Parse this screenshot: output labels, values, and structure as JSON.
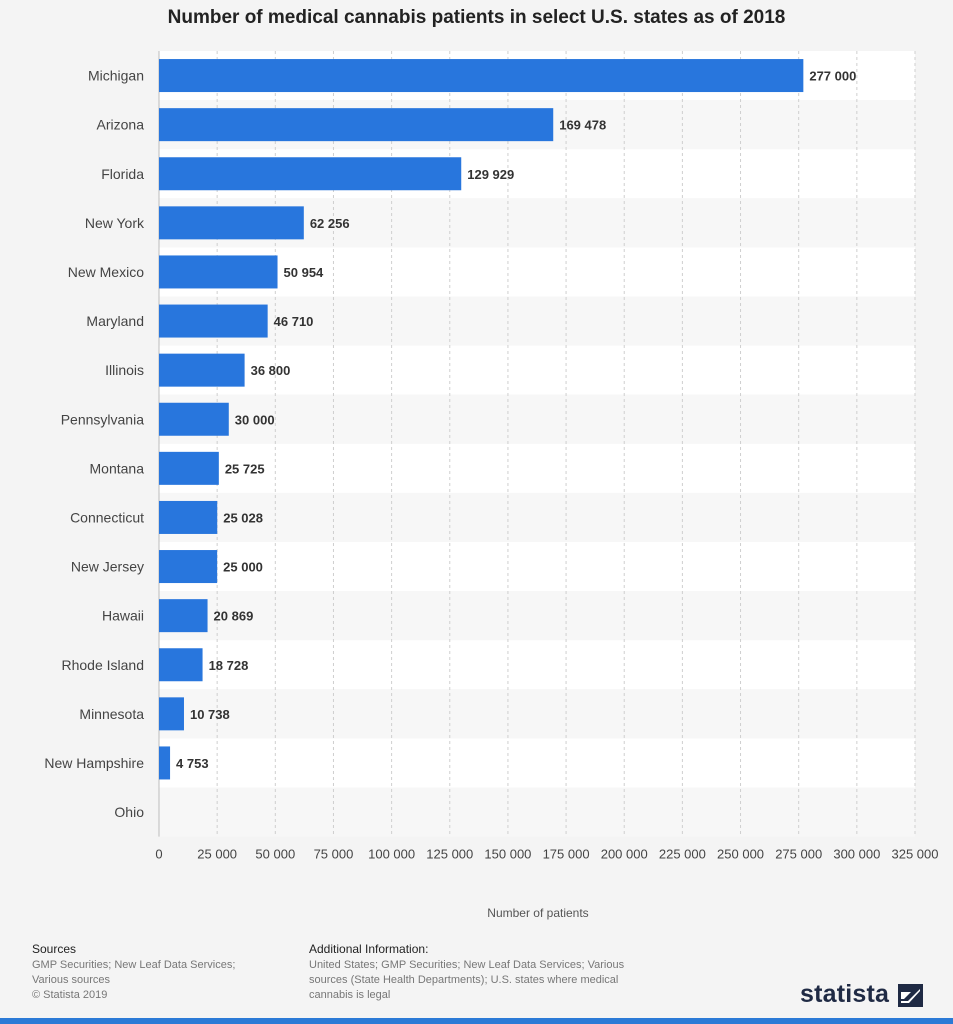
{
  "chart_data": {
    "type": "bar",
    "orientation": "horizontal",
    "title": "Number of medical cannabis patients in select U.S. states as of 2018",
    "categories": [
      "Michigan",
      "Arizona",
      "Florida",
      "New York",
      "New Mexico",
      "Maryland",
      "Illinois",
      "Pennsylvania",
      "Montana",
      "Connecticut",
      "New Jersey",
      "Hawaii",
      "Rhode Island",
      "Minnesota",
      "New Hampshire",
      "Ohio"
    ],
    "values": [
      277000,
      169478,
      129929,
      62256,
      50954,
      46710,
      36800,
      30000,
      25725,
      25028,
      25000,
      20869,
      18728,
      10738,
      4753,
      0
    ],
    "value_labels": [
      "277 000",
      "169 478",
      "129 929",
      "62 256",
      "50 954",
      "46 710",
      "36 800",
      "30 000",
      "25 725",
      "25 028",
      "25 000",
      "20 869",
      "18 728",
      "10 738",
      "4 753",
      ""
    ],
    "xlabel": "Number of patients",
    "ylabel": "",
    "xlim": [
      0,
      325000
    ],
    "xticks": [
      0,
      25000,
      50000,
      75000,
      100000,
      125000,
      150000,
      175000,
      200000,
      225000,
      250000,
      275000,
      300000,
      325000
    ],
    "xtick_labels": [
      "0",
      "25 000",
      "50 000",
      "75 000",
      "100 000",
      "125 000",
      "150 000",
      "175 000",
      "200 000",
      "225 000",
      "250 000",
      "275 000",
      "300 000",
      "325 000"
    ],
    "grid": true,
    "bar_color": "#2876dd"
  },
  "footer": {
    "sources_heading": "Sources",
    "sources_lines": [
      "GMP Securities; New Leaf Data Services;",
      "Various sources",
      "© Statista 2019"
    ],
    "additional_heading": "Additional Information:",
    "additional_lines": [
      "United States; GMP Securities; New Leaf Data Services; Various",
      "sources (State Health Departments); U.S. states where medical",
      "cannabis is legal"
    ]
  },
  "brand": {
    "name": "statista",
    "accent_color": "#2b7ad6"
  }
}
